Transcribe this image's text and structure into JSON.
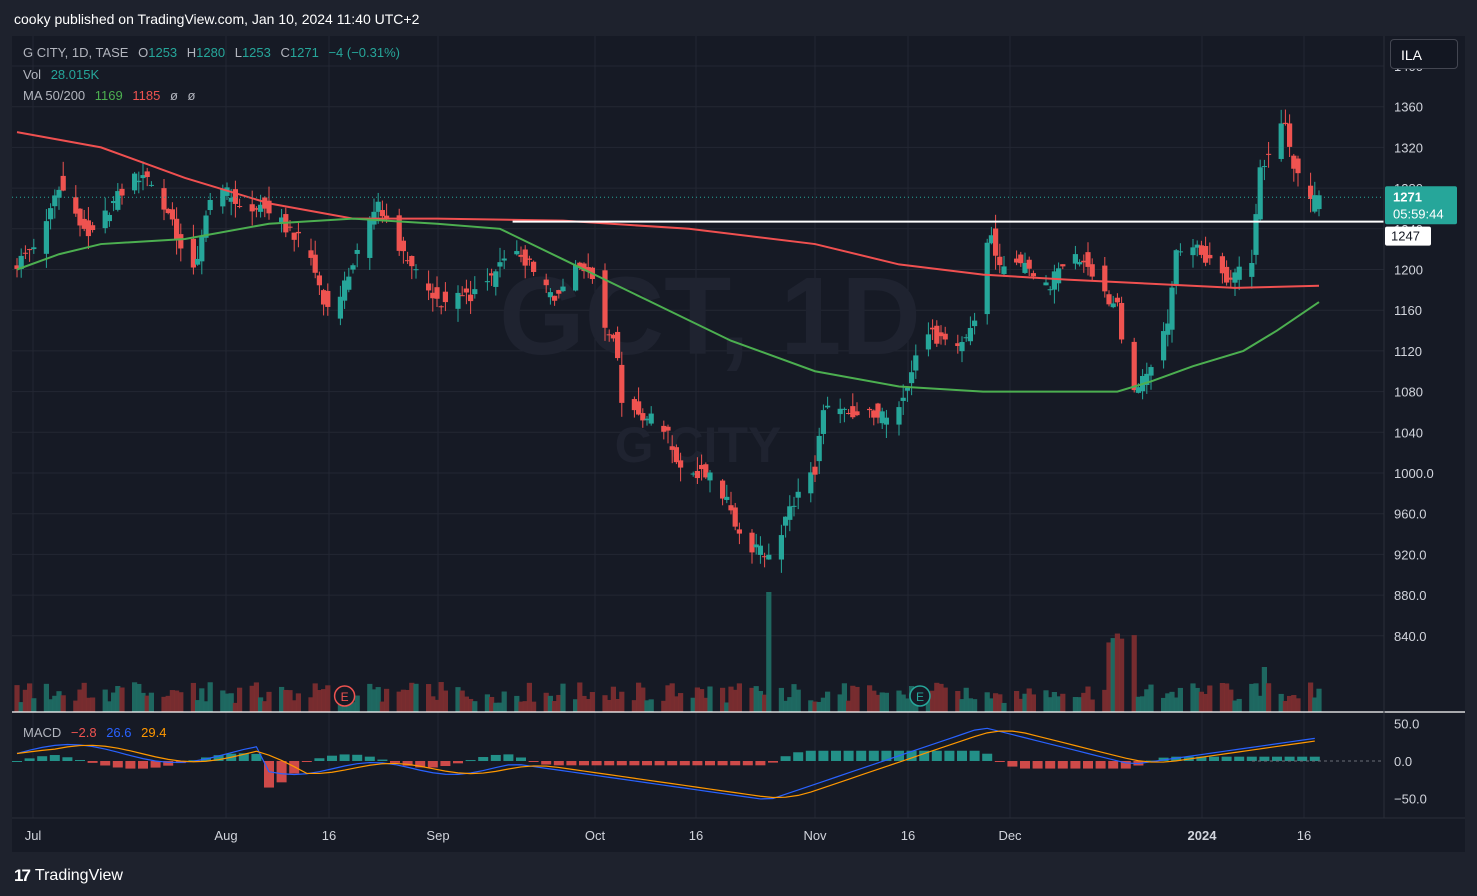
{
  "header": {
    "published_text": "cooky published on TradingView.com, Jan 10, 2024 11:40 UTC+2"
  },
  "legend": {
    "symbol_line": "G CITY, 1D, TASE",
    "open_label": "O",
    "open_value": "1253",
    "high_label": "H",
    "high_value": "1280",
    "low_label": "L",
    "low_value": "1253",
    "close_label": "C",
    "close_value": "1271",
    "change": "−4 (−0.31%)",
    "vol_label": "Vol",
    "vol_value": "28.015K",
    "ma_label": "MA 50/200",
    "ma50_value": "1169",
    "ma200_value": "1185",
    "ma_na1": "ø",
    "ma_na2": "ø",
    "macd_label": "MACD",
    "macd_hist": "−2.8",
    "macd_line": "26.6",
    "macd_signal": "29.4"
  },
  "currency_button": "ILA",
  "watermark": {
    "symbol": "GCT, 1D",
    "name": "G CITY"
  },
  "price_axis": [
    "1400",
    "1360",
    "1320",
    "1280",
    "1240",
    "1200",
    "1160",
    "1120",
    "1080",
    "1040",
    "1000.0",
    "960.0",
    "920.0",
    "880.0",
    "840.0"
  ],
  "price_tags": {
    "last_price": "1271",
    "countdown": "05:59:44",
    "level": "1247"
  },
  "macd_axis": [
    "50.0",
    "0.0",
    "−50.0"
  ],
  "time_axis": [
    {
      "label": "Jul",
      "bold": false
    },
    {
      "label": "Aug",
      "bold": false
    },
    {
      "label": "16",
      "bold": false
    },
    {
      "label": "Sep",
      "bold": false
    },
    {
      "label": "Oct",
      "bold": false
    },
    {
      "label": "16",
      "bold": false
    },
    {
      "label": "Nov",
      "bold": false
    },
    {
      "label": "16",
      "bold": false
    },
    {
      "label": "Dec",
      "bold": false
    },
    {
      "label": "2024",
      "bold": true
    },
    {
      "label": "16",
      "bold": false
    }
  ],
  "earnings_markers": [
    "E",
    "E"
  ],
  "horizontal_line_level": 1247,
  "colors": {
    "up": "#26a69a",
    "down": "#ef5350",
    "ma50": "#4caf50",
    "ma200": "#f05050",
    "macd": "#2962ff",
    "signal": "#ff9800",
    "background": "#161a25"
  },
  "footer": {
    "brand": "TradingView",
    "logo_mark": "17"
  }
}
